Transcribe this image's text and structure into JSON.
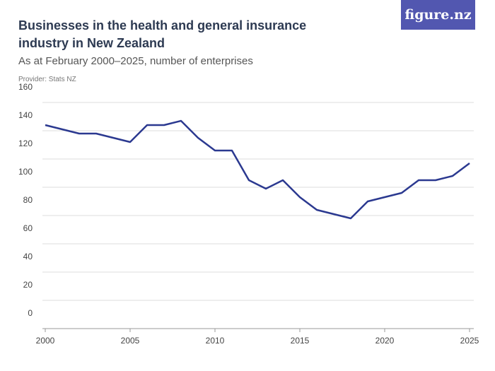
{
  "logo": "figure.nz",
  "chart_data": {
    "type": "line",
    "title": "Businesses in the health and general insurance industry in New Zealand",
    "subtitle": "As at February 2000–2025, number of enterprises",
    "provider": "Provider: Stats NZ",
    "x": [
      2000,
      2001,
      2002,
      2003,
      2004,
      2005,
      2006,
      2007,
      2008,
      2009,
      2010,
      2011,
      2012,
      2013,
      2014,
      2015,
      2016,
      2017,
      2018,
      2019,
      2020,
      2021,
      2022,
      2023,
      2024,
      2025
    ],
    "series": [
      {
        "name": "Enterprises",
        "color": "#2b3990",
        "values": [
          144,
          141,
          138,
          138,
          135,
          132,
          144,
          144,
          147,
          135,
          126,
          126,
          105,
          99,
          105,
          93,
          84,
          81,
          78,
          90,
          93,
          96,
          105,
          105,
          108,
          117
        ]
      }
    ],
    "xlim": [
      2000,
      2025
    ],
    "xticks": [
      2000,
      2005,
      2010,
      2015,
      2020,
      2025
    ],
    "ylim": [
      0,
      160
    ],
    "yticks": [
      0,
      20,
      40,
      60,
      80,
      100,
      120,
      140,
      160
    ],
    "grid": true
  }
}
